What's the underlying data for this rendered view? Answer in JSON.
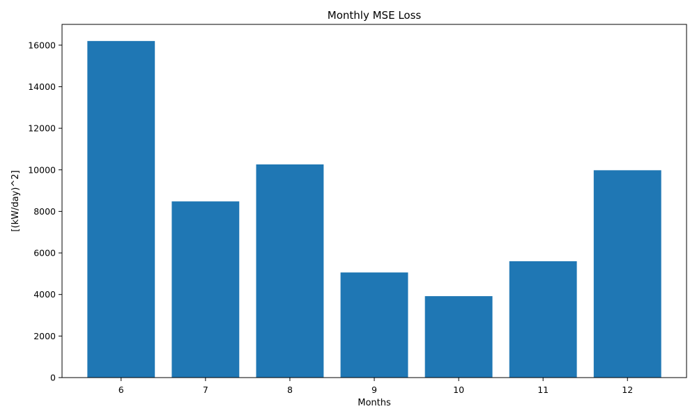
{
  "chart_data": {
    "type": "bar",
    "title": "Monthly MSE Loss",
    "xlabel": "Months",
    "ylabel": "[(kW/day)^2]",
    "categories": [
      "6",
      "7",
      "8",
      "9",
      "10",
      "11",
      "12"
    ],
    "values": [
      16200,
      8480,
      10260,
      5060,
      3920,
      5600,
      9980
    ],
    "ylim": [
      0,
      17000
    ],
    "yticks": [
      0,
      2000,
      4000,
      6000,
      8000,
      10000,
      12000,
      14000,
      16000
    ],
    "grid": false,
    "bar_color": "#1f77b4"
  }
}
